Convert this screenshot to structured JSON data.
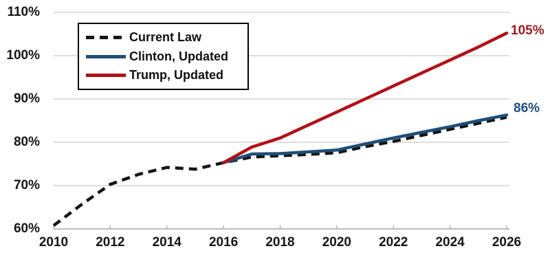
{
  "chart_data": {
    "type": "line",
    "title": "",
    "xlabel": "",
    "ylabel": "",
    "x_axis": {
      "tick_labels": [
        "2010",
        "2012",
        "2014",
        "2016",
        "2018",
        "2020",
        "2022",
        "2024",
        "2026"
      ],
      "range": [
        2010,
        2026
      ]
    },
    "y_axis": {
      "tick_labels": [
        "60%",
        "70%",
        "80%",
        "90%",
        "100%",
        "110%"
      ],
      "range": [
        60,
        110
      ],
      "unit": "%"
    },
    "grid": "horizontal",
    "gridline_color": "#c9c9c9",
    "axis_color": "#a6a6a6",
    "legend_position": "top-left",
    "series": [
      {
        "name": "Current Law",
        "style": "dashed",
        "color": "#141414",
        "x": [
          2010,
          2011,
          2012,
          2013,
          2014,
          2015,
          2016,
          2017,
          2018,
          2019,
          2020,
          2021,
          2022,
          2023,
          2024,
          2025,
          2026
        ],
        "values": [
          60.8,
          65.7,
          70.3,
          72.6,
          74.2,
          73.8,
          75.3,
          76.6,
          76.9,
          77.2,
          77.6,
          79.0,
          80.2,
          81.6,
          83.0,
          84.4,
          85.8
        ]
      },
      {
        "name": "Clinton, Updated",
        "style": "solid",
        "color": "#1f4e79",
        "x": [
          2016,
          2017,
          2018,
          2019,
          2020,
          2021,
          2022,
          2023,
          2024,
          2025,
          2026
        ],
        "values": [
          75.3,
          77.3,
          77.4,
          77.8,
          78.2,
          79.6,
          81.0,
          82.3,
          83.6,
          85.0,
          86.3
        ]
      },
      {
        "name": "Trump, Updated",
        "style": "solid",
        "color": "#b01117",
        "x": [
          2016,
          2017,
          2018,
          2019,
          2020,
          2021,
          2022,
          2023,
          2024,
          2025,
          2026
        ],
        "values": [
          75.3,
          78.9,
          81.0,
          84.0,
          87.0,
          90.0,
          93.0,
          96.0,
          99.0,
          102.0,
          105.2
        ]
      }
    ],
    "annotations": [
      {
        "text": "105%",
        "color": "#9c1b1f",
        "attached_to": "Trump, Updated",
        "x": 2026,
        "y": 105
      },
      {
        "text": "86%",
        "color": "#1f4e79",
        "attached_to": "Clinton, Updated",
        "x": 2026,
        "y": 86
      }
    ]
  }
}
